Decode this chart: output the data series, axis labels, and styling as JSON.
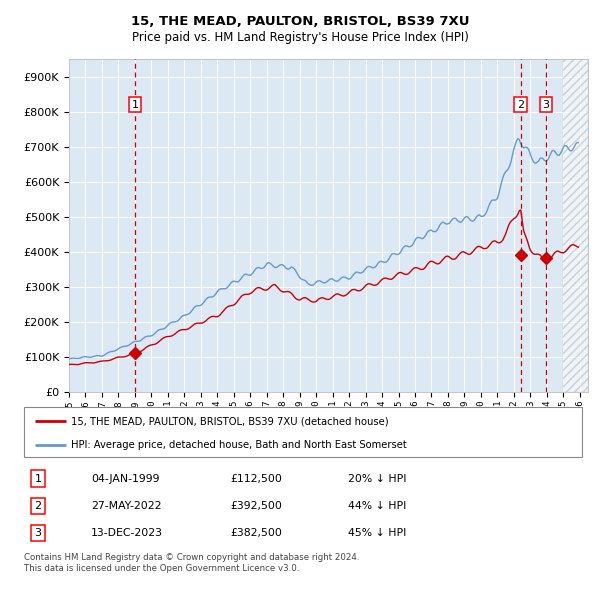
{
  "title1": "15, THE MEAD, PAULTON, BRISTOL, BS39 7XU",
  "title2": "Price paid vs. HM Land Registry's House Price Index (HPI)",
  "legend_line1": "15, THE MEAD, PAULTON, BRISTOL, BS39 7XU (detached house)",
  "legend_line2": "HPI: Average price, detached house, Bath and North East Somerset",
  "transactions": [
    {
      "label": "1",
      "date": "04-JAN-1999",
      "price": 112500,
      "pct": "20%",
      "dir": "↓"
    },
    {
      "label": "2",
      "date": "27-MAY-2022",
      "price": 392500,
      "pct": "44%",
      "dir": "↓"
    },
    {
      "label": "3",
      "date": "13-DEC-2023",
      "price": 382500,
      "pct": "45%",
      "dir": "↓"
    }
  ],
  "footer": "Contains HM Land Registry data © Crown copyright and database right 2024.\nThis data is licensed under the Open Government Licence v3.0.",
  "hpi_color": "#6699cc",
  "price_color": "#cc0000",
  "bg_color": "#dce9f5",
  "grid_color": "#ffffff",
  "vline_color": "#cc0000",
  "ylim": [
    0,
    950000
  ],
  "xlim_start": 1995.0,
  "xlim_end": 2026.5,
  "hatch_start": 2025.0
}
